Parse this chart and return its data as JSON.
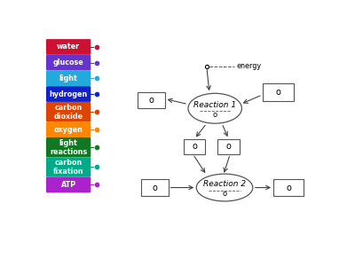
{
  "legend_items": [
    {
      "label": "water",
      "color": "#cc1133"
    },
    {
      "label": "glucose",
      "color": "#6633cc"
    },
    {
      "label": "light",
      "color": "#22aadd"
    },
    {
      "label": "hydrogen",
      "color": "#1122cc"
    },
    {
      "label": "carbon\ndioxide",
      "color": "#dd4400"
    },
    {
      "label": "oxygen",
      "color": "#ff8800"
    },
    {
      "label": "light\nreactions",
      "color": "#117722"
    },
    {
      "label": "carbon\nfixation",
      "color": "#00aa88"
    },
    {
      "label": "ATP",
      "color": "#aa22cc"
    }
  ],
  "dot_colors": [
    "#cc1133",
    "#6633cc",
    "#22aadd",
    "#1122cc",
    "#dd4400",
    "#ff8800",
    "#117722",
    "#00aa88",
    "#aa22cc"
  ],
  "bg_color": "#ffffff"
}
